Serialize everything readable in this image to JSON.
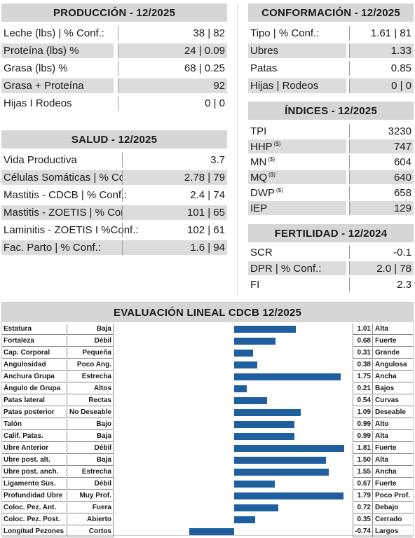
{
  "produccion": {
    "title": "PRODUCCIÓN - 12/2025",
    "rows": [
      {
        "label": "Leche (lbs) | % Conf.:",
        "value": "38 | 82"
      },
      {
        "label": "Proteína (lbs) %",
        "value": "24 | 0.09"
      },
      {
        "label": "Grasa (lbs) %",
        "value": "68 | 0.25"
      },
      {
        "label": "Grasa + Proteína",
        "value": "92"
      },
      {
        "label": "Hijas I Rodeos",
        "value": "0 | 0"
      }
    ]
  },
  "conformacion": {
    "title": "CONFORMACIÓN - 12/2025",
    "rows": [
      {
        "label": "Tipo | % Conf.:",
        "value": "1.61 | 81"
      },
      {
        "label": "Ubres",
        "value": "1.33"
      },
      {
        "label": "Patas",
        "value": "0.85"
      },
      {
        "label": "Hijas | Rodeos",
        "value": "0 | 0"
      }
    ]
  },
  "indices": {
    "title": "ÍNDICES - 12/2025",
    "sup": "($)",
    "rows": [
      {
        "label": "TPI",
        "value": "3230",
        "sup": false
      },
      {
        "label": "HHP",
        "value": "747",
        "sup": true
      },
      {
        "label": "MN",
        "value": "604",
        "sup": true
      },
      {
        "label": "MQ",
        "value": "640",
        "sup": true
      },
      {
        "label": "DWP",
        "value": "658",
        "sup": true
      },
      {
        "label": "IEP",
        "value": "129",
        "sup": false
      }
    ]
  },
  "salud": {
    "title": "SALUD - 12/2025",
    "rows": [
      {
        "label": "Vida Productiva",
        "value": "3.7"
      },
      {
        "label": "Células Somáticas | % Conf.:",
        "value": "2.78 | 79"
      },
      {
        "label": "Mastitis - CDCB | % Conf.:",
        "value": "2.4 | 74"
      },
      {
        "label": "Mastitis - ZOETIS | % Conf.:",
        "value": "101 | 65"
      },
      {
        "label": "Laminitis - ZOETIS I %Conf.:",
        "value": "102 | 61"
      },
      {
        "label": "Fac. Parto | % Conf.:",
        "value": "1.6 | 94"
      }
    ]
  },
  "fertilidad": {
    "title": "FERTILIDAD - 12/2024",
    "rows": [
      {
        "label": "SCR",
        "value": "-0.1"
      },
      {
        "label": "DPR | % Conf.:",
        "value": "2.0 | 78"
      },
      {
        "label": "FI",
        "value": "2.3"
      }
    ]
  },
  "lineal": {
    "title": "EVALUACIÓN LINEAL CDCB 12/2025",
    "bar_color": "#1f5fa0",
    "rows": [
      {
        "name": "Estatura",
        "low": "Baja",
        "value": 1.01,
        "value_text": "1.01",
        "high": "Alta"
      },
      {
        "name": "Fortaleza",
        "low": "Débil",
        "value": 0.68,
        "value_text": "0.68",
        "high": "Fuerte"
      },
      {
        "name": "Cap. Corporal",
        "low": "Pequeña",
        "value": 0.31,
        "value_text": "0.31",
        "high": "Grande"
      },
      {
        "name": "Angulosidad",
        "low": "Poco Ang.",
        "value": 0.38,
        "value_text": "0.38",
        "high": "Angulosa"
      },
      {
        "name": "Anchura Grupa",
        "low": "Estrecha",
        "value": 1.75,
        "value_text": "1.75",
        "high": "Ancha"
      },
      {
        "name": "Ángulo de Grupa",
        "low": "Altos",
        "value": 0.21,
        "value_text": "0.21",
        "high": "Bajos"
      },
      {
        "name": "Patas lateral",
        "low": "Rectas",
        "value": 0.54,
        "value_text": "0.54",
        "high": "Curvas"
      },
      {
        "name": "Patas posterior",
        "low": "No Deseable",
        "value": 1.09,
        "value_text": "1.09",
        "high": "Deseable"
      },
      {
        "name": "Talón",
        "low": "Bajo",
        "value": 0.99,
        "value_text": "0.99",
        "high": "Alto"
      },
      {
        "name": "Calif. Patas.",
        "low": "Baja",
        "value": 0.99,
        "value_text": "0.99",
        "high": "Alta"
      },
      {
        "name": "Ubre Anterior",
        "low": "Débil",
        "value": 1.81,
        "value_text": "1.81",
        "high": "Fuerte"
      },
      {
        "name": "Ubre post. alt.",
        "low": "Baja",
        "value": 1.5,
        "value_text": "1.50",
        "high": "Alta"
      },
      {
        "name": "Ubre post. anch.",
        "low": "Estrecha",
        "value": 1.55,
        "value_text": "1.55",
        "high": "Ancha"
      },
      {
        "name": "Ligamento Sus.",
        "low": "Débil",
        "value": 0.67,
        "value_text": "0.67",
        "high": "Fuerte"
      },
      {
        "name": "Profundidad Ubre",
        "low": "Muy Prof.",
        "value": 1.79,
        "value_text": "1.79",
        "high": "Poco Prof."
      },
      {
        "name": "Coloc. Pez. Ant.",
        "low": "Fuera",
        "value": 0.72,
        "value_text": "0.72",
        "high": "Debajo"
      },
      {
        "name": "Coloc. Pez. Post.",
        "low": "Abierto",
        "value": 0.35,
        "value_text": "0.35",
        "high": "Cerrado"
      },
      {
        "name": "Longitud Pezones",
        "low": "Cortos",
        "value": -0.74,
        "value_text": "-0.74",
        "high": "Largos"
      }
    ]
  }
}
